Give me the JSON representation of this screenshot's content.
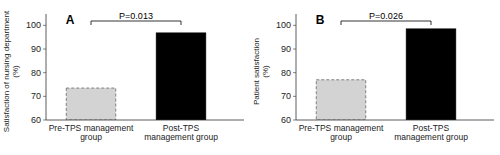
{
  "chart_data": [
    {
      "type": "bar",
      "title": "A",
      "categories": [
        "Pre-TPS management group",
        "Post-TPS management group"
      ],
      "values": [
        73.5,
        96.8
      ],
      "colors": [
        "#d3d3d3",
        "#000000"
      ],
      "y_label": "Satisfaction of nursing department\n(%)",
      "ylim": [
        60,
        104.8
      ],
      "yticks": [
        60,
        70,
        80,
        90,
        100
      ],
      "annotations": [
        "P=0.013"
      ]
    },
    {
      "type": "bar",
      "title": "B",
      "categories": [
        "Pre-TPS management group",
        "Post-TPS management group"
      ],
      "values": [
        77.0,
        98.5
      ],
      "colors": [
        "#d3d3d3",
        "#000000"
      ],
      "y_label": "Patient satisfaction\n(%)",
      "ylim": [
        60,
        104.8
      ],
      "yticks": [
        60,
        70,
        80,
        90,
        100
      ],
      "annotations": [
        "P=0.026"
      ]
    }
  ]
}
